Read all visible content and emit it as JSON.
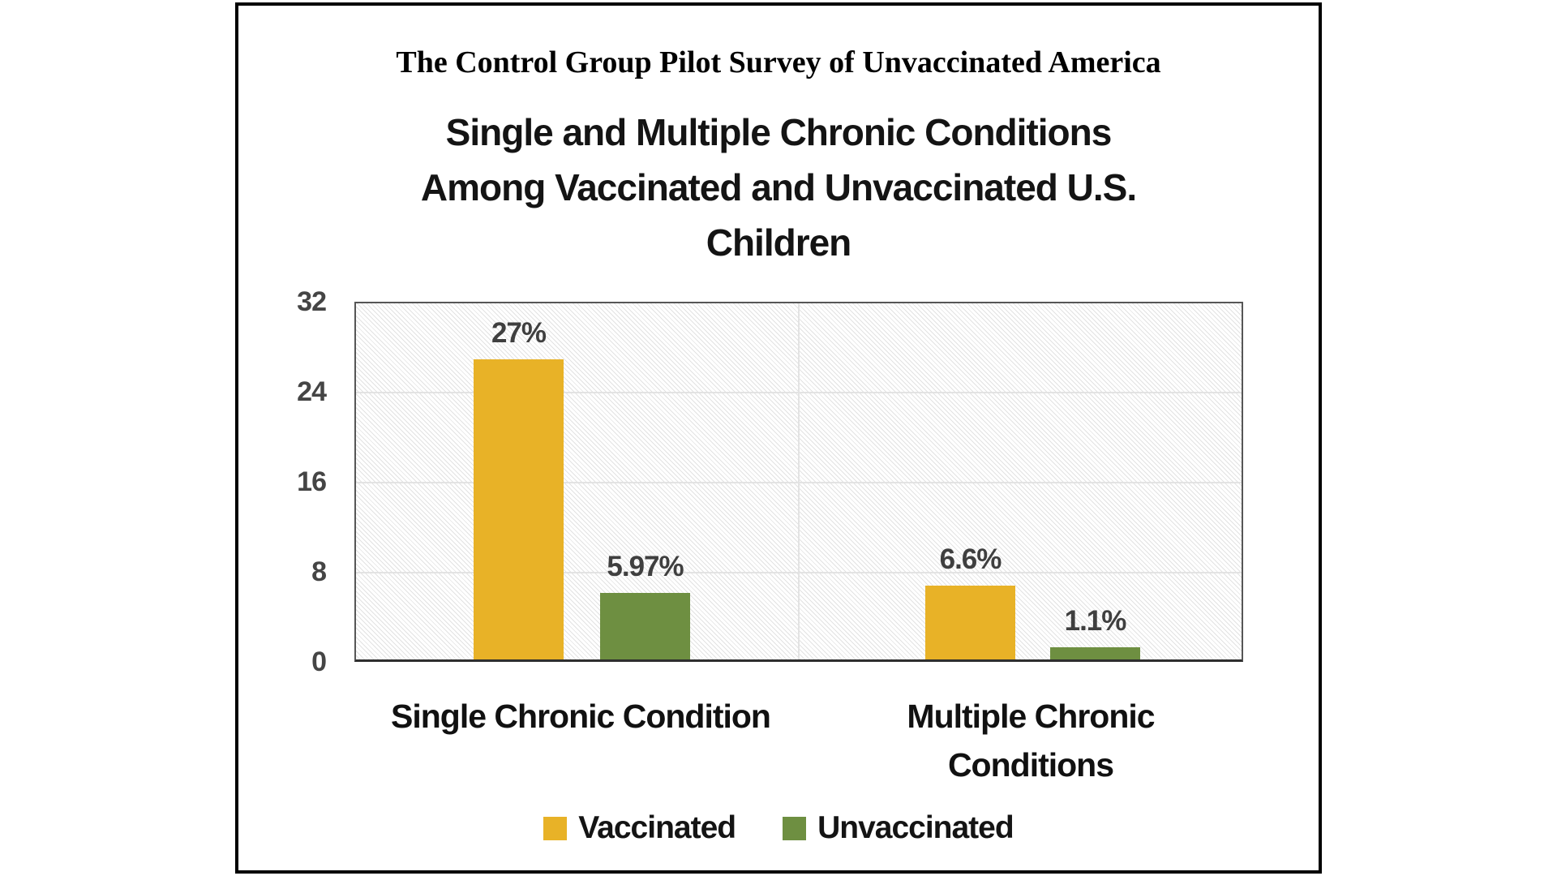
{
  "header": {
    "survey_title": "The Control Group Pilot Survey of Unvaccinated America"
  },
  "chart_data": {
    "type": "bar",
    "title": "Single and Multiple Chronic Conditions Among Vaccinated and Unvaccinated U.S. Children",
    "title_lines": [
      "Single and Multiple Chronic Conditions",
      "Among Vaccinated and Unvaccinated U.S.",
      "Children"
    ],
    "categories": [
      "Single Chronic Condition",
      "Multiple Chronic Conditions"
    ],
    "series": [
      {
        "name": "Vaccinated",
        "color": "#E8B227",
        "values": [
          27,
          6.6
        ],
        "data_labels": [
          "27%",
          "6.6%"
        ]
      },
      {
        "name": "Unvaccinated",
        "color": "#6E8F41",
        "values": [
          5.97,
          1.1
        ],
        "data_labels": [
          "5.97%",
          "1.1%"
        ]
      }
    ],
    "ylim": [
      0,
      32
    ],
    "yticks": [
      "32",
      "24",
      "16",
      "8",
      "0"
    ],
    "grid": true,
    "plot_background": "diagonal-hatch",
    "legend_position": "bottom",
    "colors": {
      "gridline": "#E3E3E3",
      "plot_border": "#565656",
      "axis_text": "#454545",
      "data_label_text": "#3F3F3F",
      "category_text": "#111111",
      "frame_border": "#000000"
    }
  }
}
